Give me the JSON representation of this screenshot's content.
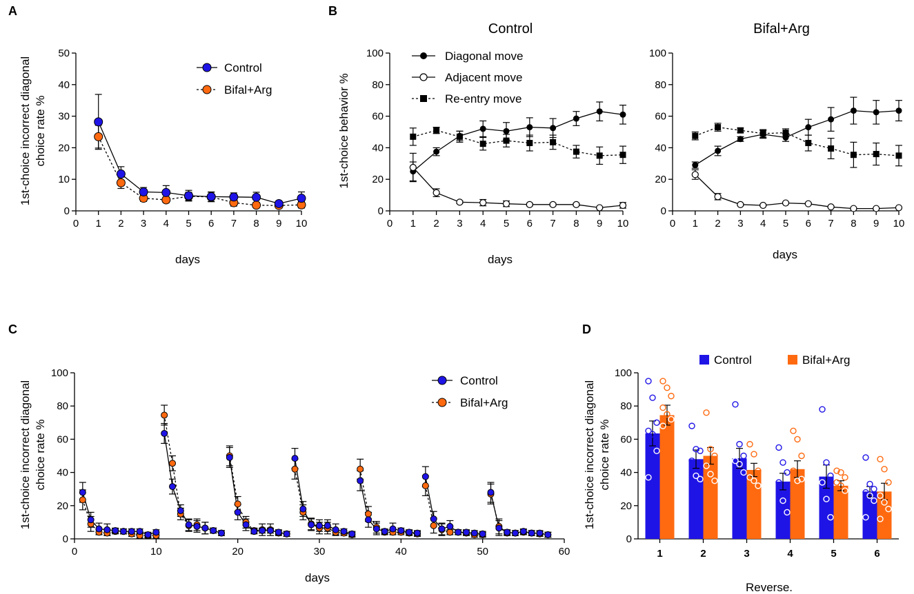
{
  "panel_labels": [
    "A",
    "B",
    "C",
    "D"
  ],
  "colors": {
    "control": "#1f14e6",
    "bifal": "#ff6a10",
    "black": "#000000"
  },
  "chart_data": [
    {
      "id": "A",
      "type": "line",
      "xlabel": "days",
      "ylabel_lines": [
        "1st-choice incorrect diagonal",
        "choice rate %"
      ],
      "ylim": [
        0,
        50
      ],
      "yticks": [
        0,
        10,
        20,
        30,
        40,
        50
      ],
      "xlim": [
        0,
        10
      ],
      "xticks": [
        0,
        1,
        2,
        3,
        4,
        5,
        6,
        7,
        8,
        9,
        10
      ],
      "x": [
        1,
        2,
        3,
        4,
        5,
        6,
        7,
        8,
        9,
        10
      ],
      "series": [
        {
          "name": "Control",
          "values": [
            28.2,
            11.7,
            6,
            5.8,
            4.8,
            4.5,
            4.4,
            4.3,
            2.3,
            4
          ],
          "errors": [
            8.7,
            2.3,
            1.4,
            2.2,
            1.7,
            1.5,
            1.3,
            1.6,
            0.7,
            2
          ]
        },
        {
          "name": "Bifal+Arg",
          "values": [
            23.5,
            8.9,
            4,
            3.5,
            4.6,
            4.4,
            2.6,
            1.8,
            1.7,
            1.9
          ],
          "errors": [
            3.6,
            1.8,
            1,
            0.9,
            1.3,
            1.5,
            1.1,
            0.7,
            0.8,
            1
          ]
        }
      ]
    },
    {
      "id": "B1",
      "type": "line",
      "title": "Control",
      "xlabel": "days",
      "ylabel_lines": [
        "1st-choice behavior %"
      ],
      "ylim": [
        0,
        100
      ],
      "yticks": [
        0,
        20,
        40,
        60,
        80,
        100
      ],
      "xlim": [
        0,
        10
      ],
      "xticks": [
        0,
        1,
        2,
        3,
        4,
        5,
        6,
        7,
        8,
        9,
        10
      ],
      "x": [
        1,
        2,
        3,
        4,
        5,
        6,
        7,
        8,
        9,
        10
      ],
      "series": [
        {
          "name": "Diagonal move",
          "values": [
            25,
            37.5,
            47.5,
            52,
            50.5,
            53,
            52.5,
            58.5,
            63,
            61
          ],
          "errors": [
            6,
            2.5,
            3,
            5,
            5.5,
            6,
            6,
            4.5,
            6,
            6
          ]
        },
        {
          "name": "Adjacent move",
          "values": [
            27.5,
            11.5,
            5.5,
            5.2,
            4.5,
            4,
            4,
            4,
            2,
            3.5
          ],
          "errors": [
            9,
            2.5,
            0.8,
            2,
            1.8,
            0.8,
            0.8,
            0.8,
            0.5,
            1.8
          ]
        },
        {
          "name": "Re-entry move",
          "values": [
            47,
            51,
            47,
            42.5,
            44.5,
            43,
            43.5,
            37.5,
            35,
            35.5
          ],
          "errors": [
            5.5,
            2,
            3.5,
            4,
            4,
            5,
            4.5,
            4,
            5.5,
            5.5
          ]
        }
      ]
    },
    {
      "id": "B2",
      "type": "line",
      "title": "Bifal+Arg",
      "xlabel": "days",
      "ylim": [
        0,
        100
      ],
      "yticks": [
        0,
        20,
        40,
        60,
        80,
        100
      ],
      "xlim": [
        0,
        10
      ],
      "xticks": [
        0,
        1,
        2,
        3,
        4,
        5,
        6,
        7,
        8,
        9,
        10
      ],
      "x": [
        1,
        2,
        3,
        4,
        5,
        6,
        7,
        8,
        9,
        10
      ],
      "series": [
        {
          "name": "Diagonal move",
          "values": [
            29,
            38,
            45.5,
            48.5,
            46.5,
            53,
            58,
            63.5,
            62.5,
            63.5
          ],
          "errors": [
            2,
            3,
            1.5,
            2.5,
            2.5,
            5,
            7.5,
            8.5,
            7.5,
            6.5
          ]
        },
        {
          "name": "Adjacent move",
          "values": [
            23,
            9,
            4,
            3.5,
            5,
            4.5,
            2.5,
            1.5,
            1.5,
            2
          ],
          "errors": [
            3,
            2,
            0.5,
            0.5,
            0.5,
            0.5,
            0.5,
            0.3,
            0.3,
            0.3
          ]
        },
        {
          "name": "Re-entry move",
          "values": [
            47.5,
            53,
            51,
            49,
            49.5,
            43,
            39.5,
            35.5,
            36,
            35
          ],
          "errors": [
            2.5,
            2.5,
            1.5,
            2.5,
            2.5,
            5,
            6.5,
            8,
            7,
            6.5
          ]
        }
      ]
    },
    {
      "id": "C",
      "type": "line",
      "xlabel": "days",
      "ylabel_lines": [
        "1st-choice incorrect diagonal",
        "choice rate %"
      ],
      "ylim": [
        0,
        100
      ],
      "yticks": [
        0,
        20,
        40,
        60,
        80,
        100
      ],
      "xlim": [
        0,
        60
      ],
      "xticks": [
        0,
        10,
        20,
        30,
        40,
        50,
        60
      ],
      "segments_x": [
        [
          1,
          2,
          3,
          4,
          5,
          6,
          7,
          8,
          9,
          10
        ],
        [
          11,
          12,
          13,
          14,
          15,
          16,
          17,
          18
        ],
        [
          19,
          20,
          21,
          22,
          23,
          24,
          25,
          26
        ],
        [
          27,
          28,
          29,
          30,
          31,
          32,
          33,
          34
        ],
        [
          35,
          36,
          37,
          38,
          39,
          40,
          41,
          42
        ],
        [
          43,
          44,
          45,
          46,
          47,
          48,
          49,
          50
        ],
        [
          51,
          52,
          53,
          54,
          55,
          56,
          57,
          58
        ]
      ],
      "series": [
        {
          "name": "Control",
          "segments": [
            [
              28,
              11.5,
              6,
              5.5,
              5,
              4.5,
              4.5,
              4.5,
              2.5,
              4
            ],
            [
              63.5,
              31.5,
              17,
              8.5,
              7.5,
              6.5,
              5,
              3.5
            ],
            [
              49,
              16,
              8.5,
              4.5,
              5,
              5,
              4,
              3
            ],
            [
              48.5,
              18,
              8.5,
              8,
              8,
              5.5,
              4.5,
              3
            ],
            [
              35,
              11.5,
              6,
              4.5,
              6,
              5,
              4,
              3.5
            ],
            [
              37.5,
              12,
              6,
              7.5,
              4,
              4,
              3.5,
              3
            ],
            [
              28,
              6.5,
              4,
              3.5,
              4.5,
              3.5,
              3.5,
              2.5
            ]
          ],
          "err": 4
        },
        {
          "name": "Bifal+Arg",
          "segments": [
            [
              23.5,
              9,
              4,
              3.5,
              4.5,
              4.5,
              3,
              2,
              2,
              2
            ],
            [
              74.5,
              45.5,
              15,
              8,
              8.5,
              6.5,
              5,
              3.5
            ],
            [
              50,
              21,
              10,
              5,
              5.5,
              5.5,
              3.5,
              3
            ],
            [
              42,
              16,
              9,
              6.5,
              6.5,
              4,
              3.5,
              2.5
            ],
            [
              42,
              15,
              7,
              4,
              4,
              4,
              3.5,
              3
            ],
            [
              32,
              8,
              5.5,
              4,
              4,
              3.5,
              2.5,
              2.5
            ],
            [
              27,
              7.5,
              3.5,
              3.5,
              4,
              3.5,
              3,
              2.5
            ]
          ],
          "err": 4
        }
      ]
    },
    {
      "id": "D",
      "type": "bar",
      "xlabel": "Reverse.",
      "ylabel_lines": [
        "1st-choice incorrect diagonal",
        "choice rate %"
      ],
      "ylim": [
        0,
        100
      ],
      "yticks": [
        0,
        20,
        40,
        60,
        80,
        100
      ],
      "categories": [
        "1",
        "2",
        "3",
        "4",
        "5",
        "6"
      ],
      "series": [
        {
          "name": "Control",
          "values": [
            63.5,
            48,
            48.5,
            34.5,
            37.5,
            28.5
          ],
          "errors": [
            7.5,
            5.5,
            6,
            5,
            7,
            3
          ],
          "points": [
            [
              95,
              85,
              70,
              65,
              63,
              53,
              37
            ],
            [
              68,
              54,
              53,
              47,
              38,
              36
            ],
            [
              81,
              57,
              50,
              47,
              45,
              40
            ],
            [
              55,
              46,
              40,
              34,
              23,
              16
            ],
            [
              78,
              46,
              38,
              34,
              24,
              13
            ],
            [
              49,
              33,
              30,
              28,
              26,
              23,
              13
            ]
          ]
        },
        {
          "name": "Bifal+Arg",
          "values": [
            74.5,
            50,
            41.5,
            42,
            32,
            28.5
          ],
          "errors": [
            6,
            5,
            4,
            5,
            3,
            5
          ],
          "points": [
            [
              95,
              91,
              86,
              79,
              75,
              72,
              68
            ],
            [
              76,
              54,
              50,
              44,
              39,
              35
            ],
            [
              57,
              51,
              41,
              37,
              35,
              32
            ],
            [
              65,
              60,
              50,
              41,
              35,
              36
            ],
            [
              41,
              40,
              37,
              34,
              32,
              29
            ],
            [
              48,
              42,
              34,
              26,
              22,
              18,
              12
            ]
          ]
        }
      ]
    }
  ],
  "legends": {
    "A": [
      "Control",
      "Bifal+Arg"
    ],
    "B": [
      "Diagonal move",
      "Adjacent move",
      "Re-entry move"
    ],
    "C": [
      "Control",
      "Bifal+Arg"
    ],
    "D": [
      "Control",
      "Bifal+Arg"
    ]
  },
  "titles": {
    "B1": "Control",
    "B2": "Bifal+Arg"
  },
  "axis_labels": {
    "days": "days",
    "reverse": "Reverse.",
    "behavior": "1st-choice behavior %",
    "incorrect_line1": "1st-choice incorrect diagonal",
    "incorrect_line2": "choice rate %"
  }
}
